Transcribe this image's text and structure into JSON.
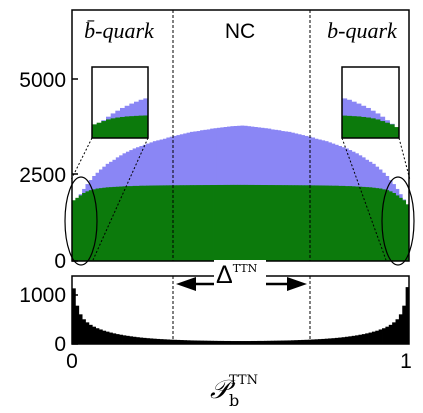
{
  "chart_data": [
    {
      "type": "histogram",
      "panel": "top",
      "xlim": [
        0,
        1
      ],
      "ylim": [
        0,
        6200
      ],
      "yticks": [
        0,
        2500,
        5000
      ],
      "ytick_labels": [
        "0",
        "2500",
        "5000"
      ],
      "series": [
        {
          "key": "light",
          "color": "#8a86f5",
          "values": [
            1350,
            1520,
            1650,
            1780,
            1900,
            2000,
            2100,
            2180,
            2260,
            2330,
            2400,
            2450,
            2500,
            2560,
            2610,
            2660,
            2700,
            2740,
            2780,
            2810,
            2840,
            2870,
            2900,
            2930,
            2960,
            2980,
            3000,
            3020,
            3050,
            3070,
            3090,
            3110,
            3130,
            3150,
            3170,
            3190,
            3200,
            3210,
            3230,
            3240,
            3250,
            3270,
            3280,
            3290,
            3300,
            3310,
            3320,
            3330,
            3335,
            3340,
            3345,
            3340,
            3330,
            3320,
            3310,
            3300,
            3290,
            3280,
            3270,
            3250,
            3240,
            3230,
            3210,
            3200,
            3190,
            3170,
            3150,
            3130,
            3110,
            3090,
            3070,
            3050,
            3020,
            3000,
            2980,
            2960,
            2930,
            2900,
            2870,
            2840,
            2810,
            2780,
            2740,
            2700,
            2660,
            2610,
            2560,
            2500,
            2450,
            2400,
            2330,
            2260,
            2180,
            2100,
            2000,
            1900,
            1780,
            1650,
            1520,
            1350
          ]
        },
        {
          "key": "dark",
          "color": "#0c7a0c",
          "values": [
            1500,
            1560,
            1620,
            1680,
            1720,
            1750,
            1770,
            1790,
            1800,
            1810,
            1820,
            1825,
            1830,
            1835,
            1840,
            1845,
            1850,
            1850,
            1855,
            1855,
            1860,
            1860,
            1862,
            1864,
            1865,
            1866,
            1867,
            1868,
            1869,
            1870,
            1870,
            1871,
            1872,
            1872,
            1873,
            1874,
            1874,
            1875,
            1875,
            1876,
            1876,
            1877,
            1877,
            1878,
            1878,
            1879,
            1879,
            1880,
            1880,
            1880,
            1880,
            1880,
            1879,
            1879,
            1878,
            1878,
            1877,
            1877,
            1876,
            1876,
            1875,
            1875,
            1874,
            1874,
            1873,
            1872,
            1872,
            1871,
            1870,
            1870,
            1869,
            1868,
            1867,
            1866,
            1865,
            1864,
            1862,
            1860,
            1860,
            1855,
            1855,
            1850,
            1850,
            1845,
            1840,
            1835,
            1830,
            1825,
            1820,
            1810,
            1800,
            1790,
            1770,
            1750,
            1720,
            1680,
            1620,
            1560,
            1500,
            1400
          ]
        }
      ],
      "regions": [
        {
          "label": "b̄-quark"
        },
        {
          "label": "NC"
        },
        {
          "label": "b-quark"
        }
      ],
      "dividers": [
        0.3,
        0.7
      ]
    },
    {
      "type": "histogram",
      "panel": "bottom",
      "xlim": [
        0,
        1
      ],
      "ylim": [
        0,
        1100
      ],
      "yticks": [
        0,
        1000
      ],
      "ytick_labels": [
        "0",
        "1000"
      ],
      "xticks": [
        0,
        1
      ],
      "xtick_labels": [
        "0",
        "1"
      ],
      "xlabel": "𝒫",
      "xlabel_sub": "b",
      "xlabel_sup": "TTN",
      "annotation": "ΔTTN",
      "series": [
        {
          "key": "black",
          "color": "#000000",
          "values": [
            900,
            620,
            480,
            400,
            350,
            310,
            280,
            255,
            235,
            215,
            200,
            185,
            172,
            160,
            150,
            140,
            132,
            124,
            117,
            110,
            104,
            99,
            94,
            90,
            86,
            82,
            79,
            76,
            73,
            70,
            68,
            66,
            64,
            62,
            60,
            58,
            57,
            56,
            55,
            54,
            53,
            52,
            51,
            50,
            50,
            49,
            49,
            48,
            48,
            48,
            48,
            48,
            48,
            49,
            49,
            50,
            50,
            51,
            52,
            53,
            54,
            55,
            56,
            57,
            58,
            60,
            62,
            64,
            66,
            68,
            70,
            73,
            76,
            79,
            82,
            86,
            90,
            94,
            99,
            104,
            110,
            117,
            124,
            132,
            140,
            150,
            160,
            172,
            185,
            200,
            215,
            235,
            255,
            280,
            310,
            350,
            400,
            480,
            620,
            920
          ]
        }
      ]
    }
  ]
}
